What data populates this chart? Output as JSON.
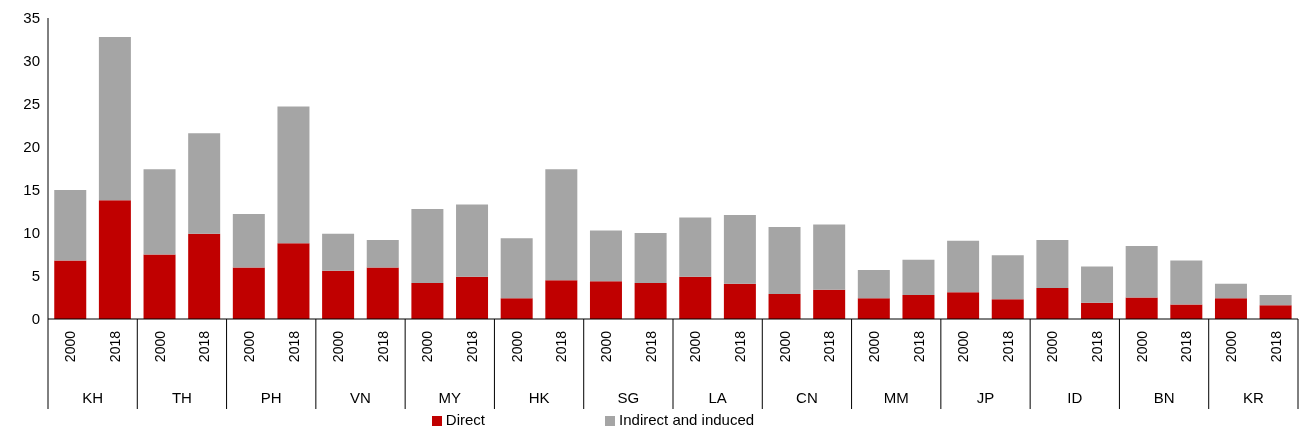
{
  "chart_data": {
    "type": "bar",
    "stacked": true,
    "categories": [
      "2000",
      "2018",
      "2000",
      "2018",
      "2000",
      "2018",
      "2000",
      "2018",
      "2000",
      "2018",
      "2000",
      "2018",
      "2000",
      "2018",
      "2000",
      "2018",
      "2000",
      "2018",
      "2000",
      "2018",
      "2000",
      "2018",
      "2000",
      "2018",
      "2000",
      "2018",
      "2000",
      "2018"
    ],
    "series": [
      {
        "name": "Direct",
        "color": "#c00000",
        "values": [
          6.8,
          13.8,
          7.5,
          9.9,
          6.0,
          8.8,
          5.6,
          6.0,
          4.2,
          4.9,
          2.4,
          4.5,
          4.4,
          4.2,
          4.9,
          4.1,
          2.9,
          3.4,
          2.4,
          2.8,
          3.1,
          2.3,
          3.6,
          1.9,
          2.5,
          1.7,
          2.4,
          1.6
        ]
      },
      {
        "name": "Indirect and induced",
        "color": "#a5a5a5",
        "values": [
          8.2,
          19.0,
          9.9,
          11.7,
          6.2,
          15.9,
          4.3,
          3.2,
          8.6,
          8.4,
          7.0,
          12.9,
          5.9,
          5.8,
          6.9,
          8.0,
          7.8,
          7.6,
          3.3,
          4.1,
          6.0,
          5.1,
          5.6,
          4.2,
          6.0,
          5.1,
          1.7,
          1.2
        ]
      }
    ],
    "annotations": [
      "KH",
      "TH",
      "PH",
      "VN",
      "MY",
      "HK",
      "SG",
      "LA",
      "CN",
      "MM",
      "JP",
      "ID",
      "BN",
      "KR"
    ],
    "ylim": [
      0,
      35
    ],
    "yticks": [
      0,
      5,
      10,
      15,
      20,
      25,
      30,
      35
    ],
    "grid": false,
    "legend": "bottom"
  }
}
